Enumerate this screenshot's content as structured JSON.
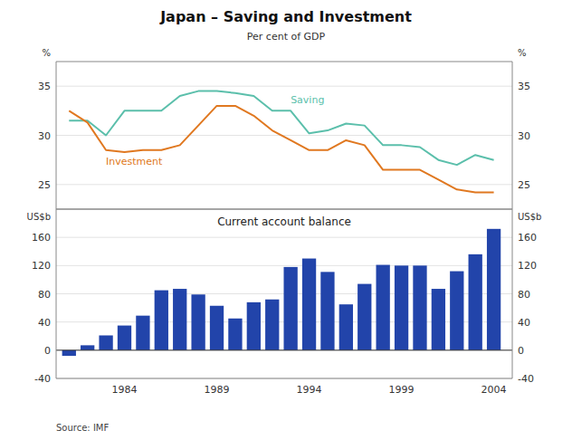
{
  "chart_data": [
    {
      "type": "line",
      "title": "Japan – Saving and Investment",
      "subtitle": "Per cent of GDP",
      "x": [
        1981,
        1982,
        1983,
        1984,
        1985,
        1986,
        1987,
        1988,
        1989,
        1990,
        1991,
        1992,
        1993,
        1994,
        1995,
        1996,
        1997,
        1998,
        1999,
        2000,
        2001,
        2002,
        2003,
        2004
      ],
      "series": [
        {
          "name": "Saving",
          "color": "#5bbfab",
          "values": [
            31.5,
            31.5,
            30.0,
            32.5,
            32.5,
            32.5,
            34.0,
            34.5,
            34.5,
            34.3,
            34.0,
            32.5,
            32.5,
            30.2,
            30.5,
            31.2,
            31.0,
            29.0,
            29.0,
            28.8,
            27.5,
            27.0,
            28.0,
            27.5
          ]
        },
        {
          "name": "Investment",
          "color": "#e07820",
          "values": [
            32.5,
            31.3,
            28.5,
            28.3,
            28.5,
            28.5,
            29.0,
            31.0,
            33.0,
            33.0,
            32.0,
            30.5,
            29.5,
            28.5,
            28.5,
            29.5,
            29.0,
            26.5,
            26.5,
            26.5,
            25.5,
            24.5,
            24.2,
            24.2
          ]
        }
      ],
      "xlim": [
        1980.3,
        2005.0
      ],
      "ylim": [
        22.5,
        37.5
      ],
      "yticks": [
        25,
        30,
        35
      ],
      "y2lim": [
        22.5,
        37.5
      ],
      "y2ticks": [
        25,
        30,
        35
      ],
      "y_label": "%",
      "y2_label": "%",
      "tick_labels": "y",
      "grid": true
    },
    {
      "type": "bar",
      "title": "Current account balance",
      "source": "Source: IMF",
      "x": [
        1981,
        1982,
        1983,
        1984,
        1985,
        1986,
        1987,
        1988,
        1989,
        1990,
        1991,
        1992,
        1993,
        1994,
        1995,
        1996,
        1997,
        1998,
        1999,
        2000,
        2001,
        2002,
        2003,
        2004
      ],
      "values": [
        -8,
        7,
        21,
        35,
        49,
        85,
        87,
        79,
        63,
        45,
        68,
        72,
        118,
        130,
        111,
        65,
        94,
        121,
        120,
        120,
        87,
        112,
        136,
        172
      ],
      "color": "#2244aa",
      "xlim": [
        1980.3,
        2005.0
      ],
      "xticks": [
        1984,
        1989,
        1994,
        1999,
        2004
      ],
      "ylim": [
        -40,
        200
      ],
      "yticks": [
        -40,
        0,
        40,
        80,
        120,
        160
      ],
      "y2lim": [
        -40,
        200
      ],
      "y2ticks": [
        -40,
        0,
        40,
        80,
        120,
        160
      ],
      "y_label": "US$b",
      "y2_label": "US$b",
      "grid": true
    }
  ]
}
